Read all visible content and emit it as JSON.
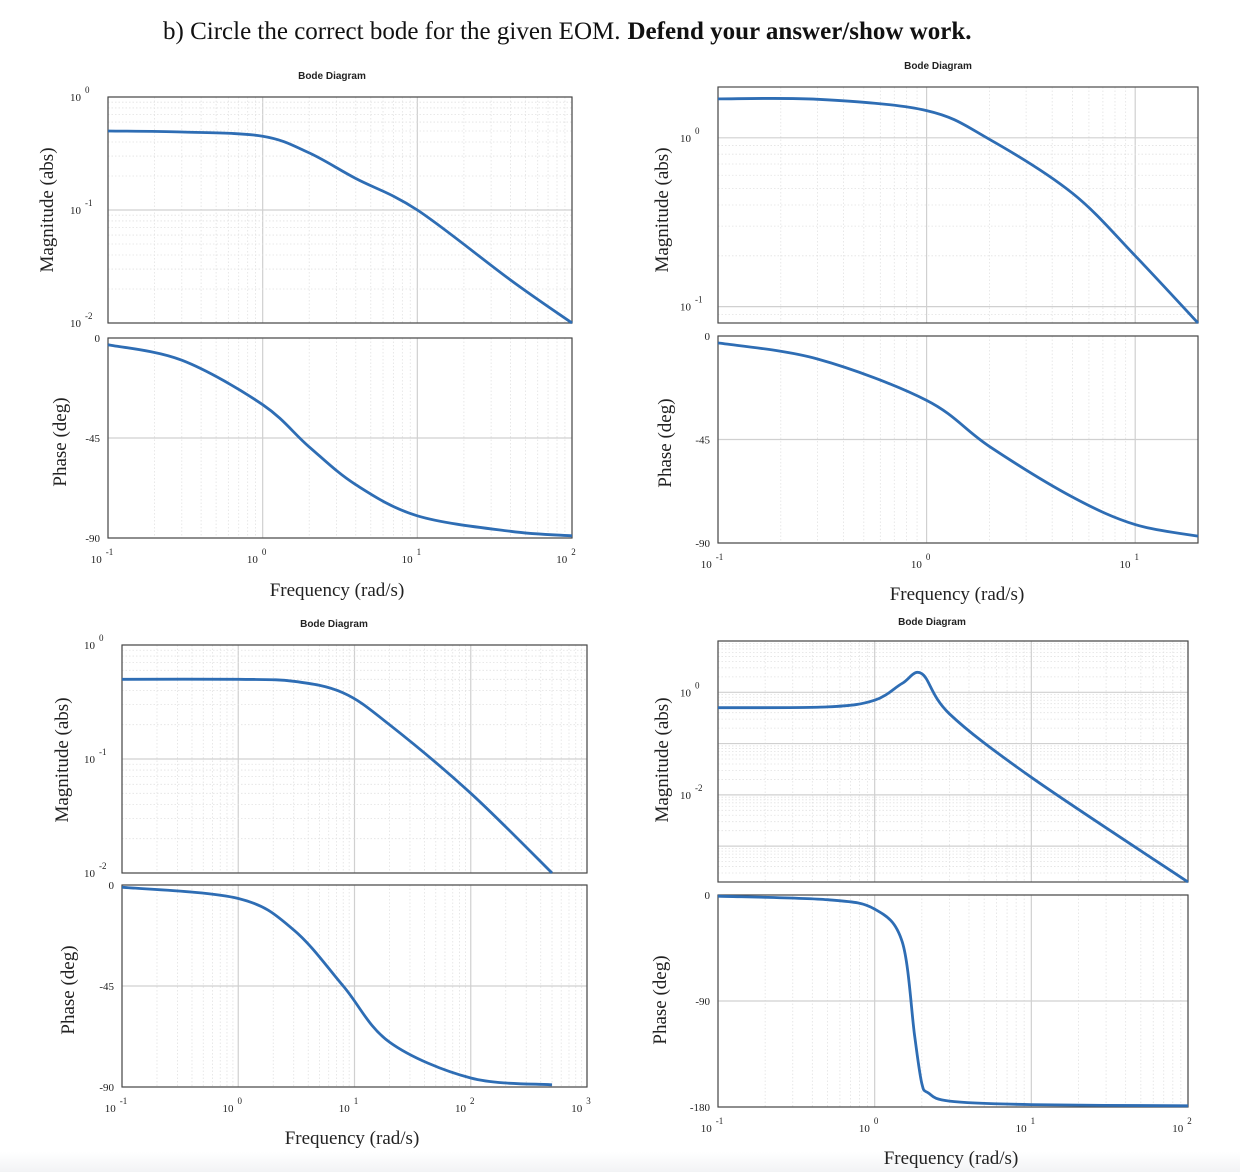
{
  "header": {
    "prefix": "b)  Circle the correct bode for the given EOM.",
    "bold": "Defend your answer/show work."
  },
  "colors": {
    "curve": "#2e6db4",
    "grid_major": "#d0d0d0",
    "grid_minor": "#e2e2e2",
    "axes": "#4a4a4a"
  },
  "chart_data": [
    {
      "id": "A",
      "type": "line",
      "title": "Bode Diagram",
      "xlabel": "Frequency (rad/s)",
      "xscale": "log",
      "xlim": [
        0.1,
        100
      ],
      "xticks": [
        [
          "10",
          "-1"
        ],
        [
          "10",
          "0"
        ],
        [
          "10",
          "1"
        ],
        [
          "10",
          "2"
        ]
      ],
      "magnitude": {
        "ylabel": "Magnitude (abs)",
        "yscale": "log",
        "ylim": [
          0.01,
          1
        ],
        "yticks": [
          [
            "10",
            "0"
          ],
          [
            "10",
            "-1"
          ],
          [
            "10",
            "-2"
          ]
        ],
        "x": [
          0.1,
          0.3,
          1,
          2,
          4,
          10,
          40,
          100
        ],
        "y": [
          0.5,
          0.49,
          0.45,
          0.32,
          0.19,
          0.1,
          0.024,
          0.01
        ]
      },
      "phase": {
        "ylabel": "Phase (deg)",
        "ylim": [
          -90,
          0
        ],
        "yticks": [
          "0",
          "-45",
          "-90"
        ],
        "x": [
          0.1,
          0.3,
          1,
          2,
          4,
          10,
          40,
          100
        ],
        "y": [
          -3,
          -10,
          -30,
          -49,
          -66,
          -80,
          -87,
          -89
        ]
      }
    },
    {
      "id": "B",
      "type": "line",
      "title": "Bode Diagram",
      "xlabel": "Frequency (rad/s)",
      "xscale": "log",
      "xlim": [
        0.1,
        20
      ],
      "xticks": [
        [
          "10",
          "-1"
        ],
        [
          "10",
          "0"
        ],
        [
          "10",
          "1"
        ]
      ],
      "magnitude": {
        "ylabel": "Magnitude (abs)",
        "yscale": "log",
        "ylim": [
          0.08,
          2
        ],
        "yticks": [
          [
            "10",
            "0"
          ],
          [
            "10",
            "-1"
          ]
        ],
        "x": [
          0.1,
          0.3,
          1,
          2,
          5,
          10,
          20
        ],
        "y": [
          1.7,
          1.69,
          1.45,
          0.98,
          0.47,
          0.2,
          0.08
        ]
      },
      "phase": {
        "ylabel": "Phase (deg)",
        "ylim": [
          -90,
          0
        ],
        "yticks": [
          "0",
          "-45",
          "-90"
        ],
        "x": [
          0.1,
          0.3,
          1,
          2,
          5,
          10,
          20
        ],
        "y": [
          -3,
          -10,
          -28,
          -48,
          -70,
          -82,
          -87
        ]
      }
    },
    {
      "id": "C",
      "type": "line",
      "title": "Bode Diagram",
      "xlabel": "Frequency (rad/s)",
      "xscale": "log",
      "xlim": [
        0.1,
        1000
      ],
      "xticks": [
        [
          "10",
          "-1"
        ],
        [
          "10",
          "0"
        ],
        [
          "10",
          "1"
        ],
        [
          "10",
          "2"
        ],
        [
          "10",
          "3"
        ]
      ],
      "magnitude": {
        "ylabel": "Magnitude (abs)",
        "yscale": "log",
        "ylim": [
          0.01,
          1
        ],
        "yticks": [
          [
            "10",
            "0"
          ],
          [
            "10",
            "-1"
          ],
          [
            "10",
            "-2"
          ]
        ],
        "x": [
          0.1,
          1,
          3,
          8,
          20,
          100,
          500
        ],
        "y": [
          0.5,
          0.5,
          0.48,
          0.38,
          0.2,
          0.05,
          0.01
        ]
      },
      "phase": {
        "ylabel": "Phase (deg)",
        "ylim": [
          -90,
          0
        ],
        "yticks": [
          "0",
          "-45",
          "-90"
        ],
        "x": [
          0.1,
          1,
          3,
          8,
          20,
          100,
          500
        ],
        "y": [
          -1,
          -6,
          -20,
          -45,
          -70,
          -86,
          -89
        ]
      }
    },
    {
      "id": "D",
      "type": "line",
      "title": "Bode Diagram",
      "xlabel": "Frequency (rad/s)",
      "xscale": "log",
      "xlim": [
        0.1,
        100
      ],
      "xticks": [
        [
          "10",
          "-1"
        ],
        [
          "10",
          "0"
        ],
        [
          "10",
          "1"
        ],
        [
          "10",
          "2"
        ]
      ],
      "magnitude": {
        "ylabel": "Magnitude (abs)",
        "yscale": "log",
        "ylim": [
          0.0002,
          10
        ],
        "yticks": [
          [
            "10",
            "0"
          ],
          [
            "10",
            "-2"
          ]
        ],
        "x": [
          0.1,
          0.5,
          1,
          1.5,
          2,
          3,
          10,
          100
        ],
        "y": [
          0.5,
          0.52,
          0.7,
          1.5,
          2.3,
          0.38,
          0.022,
          0.0002
        ]
      },
      "phase": {
        "ylabel": "Phase (deg)",
        "ylim": [
          -180,
          0
        ],
        "yticks": [
          "0",
          "-90",
          "-180"
        ],
        "x": [
          0.1,
          0.5,
          1,
          1.5,
          1.8,
          2,
          2.2,
          3,
          10,
          100
        ],
        "y": [
          -1,
          -4,
          -12,
          -40,
          -120,
          -160,
          -168,
          -175,
          -178,
          -179
        ]
      }
    }
  ]
}
